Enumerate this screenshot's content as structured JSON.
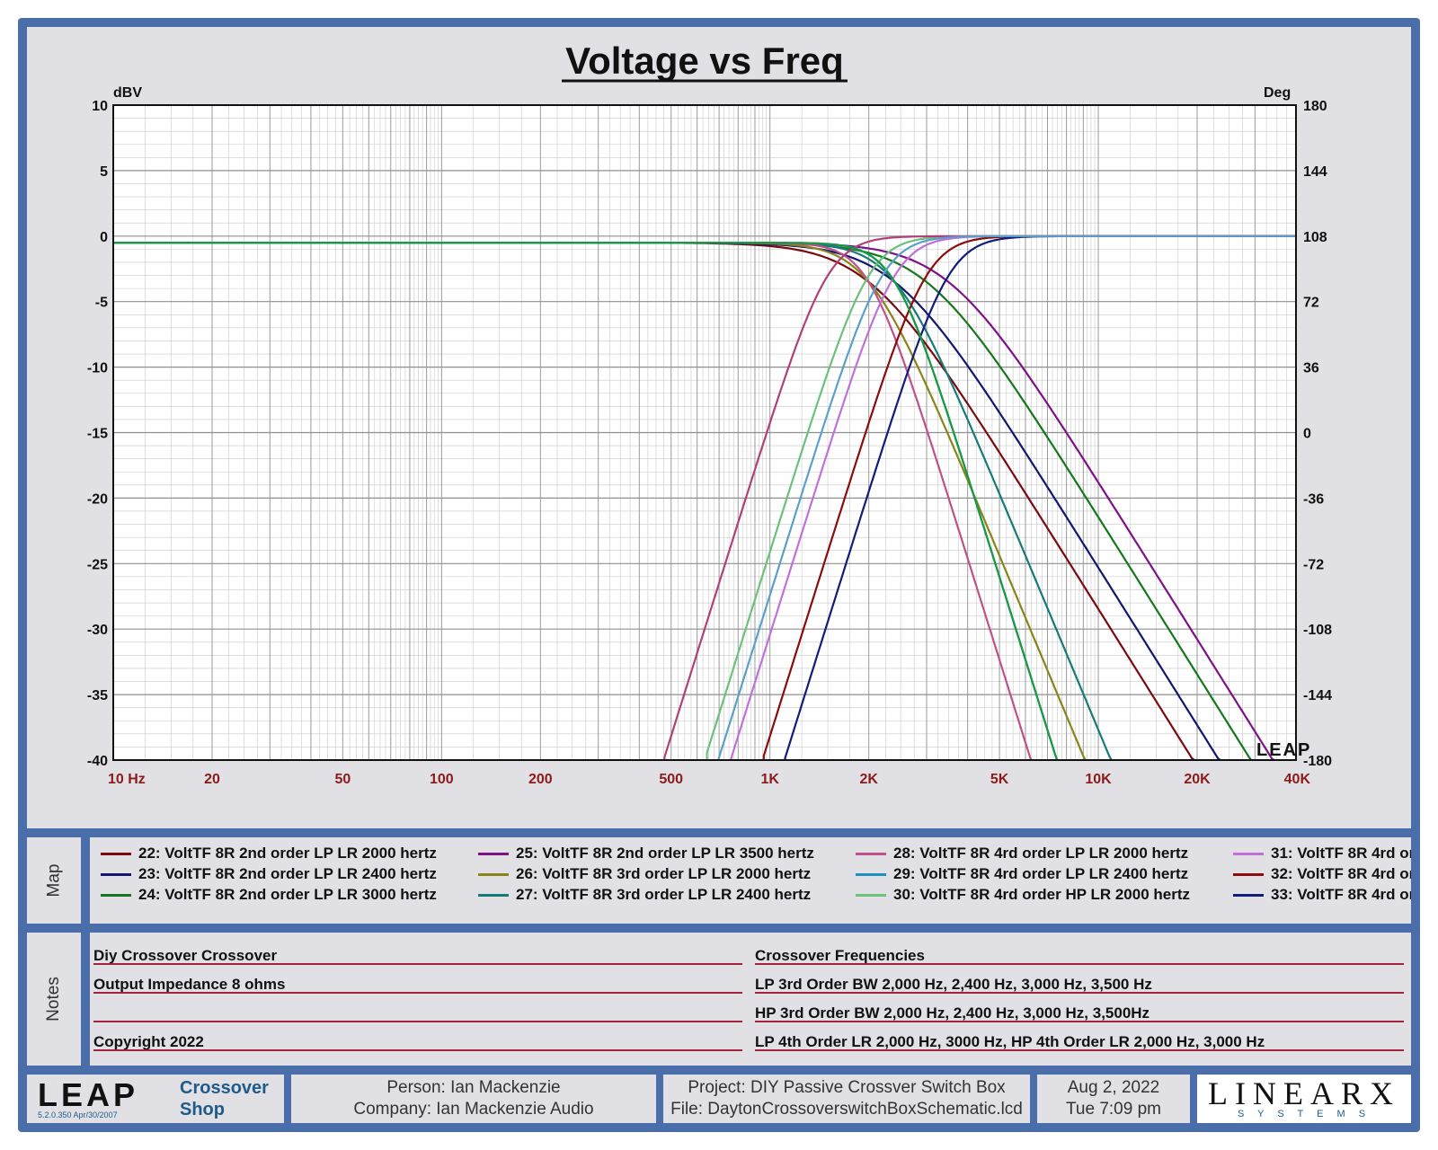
{
  "chart_data": {
    "type": "line",
    "title": "Voltage vs Freq",
    "ylabel": "dBV",
    "y2label": "Deg",
    "ylim": [
      -40,
      10
    ],
    "y2lim": [
      -180,
      180
    ],
    "xlim": [
      10,
      40000
    ],
    "xscale": "log",
    "grid": true,
    "x_ticks": [
      "10  Hz",
      "20",
      "50",
      "100",
      "200",
      "500",
      "1K",
      "2K",
      "5K",
      "10K",
      "20K",
      "40K"
    ],
    "x_tick_values": [
      10,
      20,
      50,
      100,
      200,
      500,
      1000,
      2000,
      5000,
      10000,
      20000,
      40000
    ],
    "y_ticks": [
      "10",
      "5",
      "0",
      "-5",
      "-10",
      "-15",
      "-20",
      "-25",
      "-30",
      "-35",
      "-40"
    ],
    "y2_ticks": [
      "180",
      "144",
      "108",
      "72",
      "36",
      "0",
      "-36",
      "-72",
      "-108",
      "-144",
      "-180"
    ],
    "watermark": "LEAP",
    "series": [
      {
        "name": "22: VoltTF 8R 2nd order LP LR 2000 hertz",
        "color": "#7a0a10",
        "kind": "LP",
        "fc": 2000,
        "order": 2
      },
      {
        "name": "23: VoltTF 8R 2nd order LP LR 2400 hertz",
        "color": "#12176e",
        "kind": "LP",
        "fc": 2400,
        "order": 2
      },
      {
        "name": "24: VoltTF 8R 2nd order LP LR 3000 hertz",
        "color": "#15781c",
        "kind": "LP",
        "fc": 3000,
        "order": 2
      },
      {
        "name": "25: VoltTF 8R 2nd order LP LR 3500 hertz",
        "color": "#7d1287",
        "kind": "LP",
        "fc": 3500,
        "order": 2
      },
      {
        "name": "26: VoltTF 8R 3rd order LP LR 2000 hertz",
        "color": "#8a8418",
        "kind": "LP",
        "fc": 2000,
        "order": 3
      },
      {
        "name": "27: VoltTF 8R 3rd order LP LR 2400 hertz",
        "color": "#167a78",
        "kind": "LP",
        "fc": 2400,
        "order": 3
      },
      {
        "name": "28: VoltTF 8R 4rd order LP LR 2000 hertz",
        "color": "#c0508a",
        "kind": "LP",
        "fc": 2000,
        "order": 4
      },
      {
        "name": "29: VoltTF 8R 4rd order LP LR 2400 hertz",
        "color": "#1e90c0",
        "kind": "LP",
        "fc": 2400,
        "order": 4
      },
      {
        "name": "30: VoltTF 8R 4rd order HP LR 2000 hertz",
        "color": "#6cc07a",
        "kind": "HP",
        "fc": 2000,
        "order": 4
      },
      {
        "name": "31: VoltTF 8R 4rd or",
        "color": "#c070d8",
        "kind": "HP",
        "fc": 2400,
        "order": 4
      },
      {
        "name": "32: VoltTF 8R 4rd or",
        "color": "#8a0c0c",
        "kind": "HP",
        "fc": 3000,
        "order": 4
      },
      {
        "name": "33: VoltTF 8R 4rd or",
        "color": "#121c7a",
        "kind": "HP",
        "fc": 3500,
        "order": 4
      },
      {
        "name": "",
        "color": "#b0407a",
        "kind": "HP",
        "fc": 1500,
        "order": 4
      },
      {
        "name": "",
        "color": "#1a9a40",
        "kind": "LP",
        "fc": 2400,
        "order": 4
      },
      {
        "name": "",
        "color": "#5aa0c8",
        "kind": "HP",
        "fc": 2200,
        "order": 4
      }
    ]
  },
  "map": {
    "label": "Map",
    "items": [
      {
        "text": "22: VoltTF 8R 2nd order LP LR 2000 hertz",
        "color": "#7a0a10"
      },
      {
        "text": "23: VoltTF 8R 2nd order LP LR 2400 hertz",
        "color": "#12176e"
      },
      {
        "text": "24: VoltTF 8R 2nd order LP LR 3000 hertz",
        "color": "#15781c"
      },
      {
        "text": "25: VoltTF 8R 2nd order LP LR 3500 hertz",
        "color": "#7d1287"
      },
      {
        "text": "26: VoltTF 8R 3rd order LP LR 2000 hertz",
        "color": "#8a8418"
      },
      {
        "text": "27: VoltTF 8R 3rd order LP LR 2400 hertz",
        "color": "#167a78"
      },
      {
        "text": "28: VoltTF 8R 4rd order LP LR 2000 hertz",
        "color": "#c0508a"
      },
      {
        "text": "29: VoltTF 8R 4rd order LP LR 2400 hertz",
        "color": "#1e90c0"
      },
      {
        "text": "30: VoltTF 8R 4rd order HP LR 2000 hertz",
        "color": "#6cc07a"
      },
      {
        "text": "31: VoltTF 8R 4rd or",
        "color": "#c070d8"
      },
      {
        "text": "32: VoltTF 8R 4rd or",
        "color": "#8a0c0c"
      },
      {
        "text": "33: VoltTF 8R 4rd or",
        "color": "#121c7a"
      }
    ]
  },
  "notes": {
    "label": "Notes",
    "left": [
      "Diy Crossover Crossover",
      "Output Impedance 8 ohms",
      "",
      "Copyright 2022"
    ],
    "right": [
      "Crossover Frequencies",
      "LP 3rd Order BW 2,000 Hz, 2,400 Hz, 3,000 Hz, 3,500 Hz",
      "HP 3rd Order BW 2,000 Hz, 2,400 Hz, 3,000 Hz, 3,500Hz",
      "LP 4th Order LR 2,000 Hz, 3000 Hz, HP 4th Order LR 2,000 Hz, 3,000 Hz"
    ]
  },
  "footer": {
    "logo": "LEAP",
    "version": "5.2.0.350  Apr/30/2007",
    "app_line1": "Crossover",
    "app_line2": "Shop",
    "person": "Person: Ian Mackenzie",
    "company": "Company: Ian Mackenzie Audio",
    "project": "Project: DIY Passive Crossver Switch Box",
    "file": "File: DaytonCrossoverswitchBoxSchematic.lcd",
    "date": "Aug  2, 2022",
    "time": "Tue  7:09 pm",
    "brand": "LINEARX",
    "brand_sub": "S Y S T E M S"
  },
  "colors": {
    "frame": "#4a6ea9",
    "panel": "#e1e1e5",
    "tick_x": "#8b1a1a",
    "note_rule": "#a4213f",
    "accent_text": "#1f5a8a"
  }
}
